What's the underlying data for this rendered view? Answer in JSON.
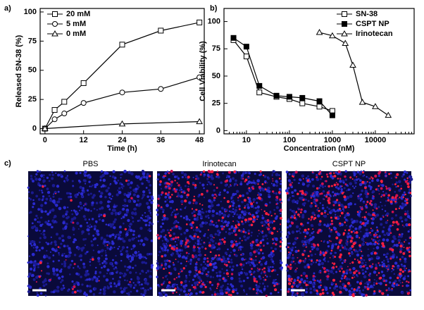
{
  "panel_labels": [
    "a)",
    "b)",
    "c)"
  ],
  "chart_data": [
    {
      "type": "line",
      "x_label": "Time (h)",
      "y_label": "Released SN-38 (%)",
      "xlim": [
        -1.5,
        49.5
      ],
      "xticks": [
        0,
        12,
        24,
        36,
        48
      ],
      "ylim": [
        -4.5,
        103
      ],
      "yticks": [
        0,
        25,
        50,
        75,
        100
      ],
      "log_x": false,
      "legend": "top-left",
      "series": [
        {
          "name": "20 mM",
          "color": "#000000",
          "marker": "square",
          "filled": false,
          "x": [
            0,
            3,
            6,
            12,
            24,
            36,
            48
          ],
          "values": [
            0,
            16,
            23,
            39,
            72,
            84,
            91
          ]
        },
        {
          "name": "5 mM",
          "color": "#000000",
          "marker": "circle",
          "filled": false,
          "x": [
            0,
            3,
            6,
            12,
            24,
            36,
            48
          ],
          "values": [
            0,
            8,
            13,
            22,
            31,
            34,
            44
          ]
        },
        {
          "name": "0 mM",
          "color": "#000000",
          "marker": "triangle",
          "filled": false,
          "x": [
            0,
            24,
            48
          ],
          "values": [
            0,
            4,
            6
          ]
        }
      ]
    },
    {
      "type": "line",
      "x_label": "Concentration (nM)",
      "y_label": "Cell Viability (%)",
      "xlim": [
        3,
        80000
      ],
      "xticks": [
        10,
        100,
        1000,
        10000
      ],
      "ylim": [
        -3,
        112
      ],
      "yticks": [
        0,
        25,
        50,
        75,
        100
      ],
      "log_x": true,
      "legend": "top-right",
      "series": [
        {
          "name": "SN-38",
          "color": "#000000",
          "marker": "square",
          "filled": false,
          "x": [
            5,
            10,
            20,
            50,
            100,
            200,
            500,
            1000
          ],
          "values": [
            83,
            68,
            35,
            31,
            29,
            25,
            22,
            18
          ]
        },
        {
          "name": "CSPT NP",
          "color": "#000000",
          "marker": "square",
          "filled": true,
          "x": [
            5,
            10,
            20,
            50,
            100,
            200,
            500,
            1000
          ],
          "values": [
            85,
            77,
            41,
            32,
            31,
            30,
            27,
            14
          ]
        },
        {
          "name": "Irinotecan",
          "color": "#000000",
          "marker": "triangle",
          "filled": false,
          "x": [
            500,
            1000,
            2000,
            3000,
            5000,
            10000,
            20000
          ],
          "values": [
            90,
            87,
            80,
            60,
            26,
            22,
            14
          ]
        }
      ]
    }
  ],
  "images": [
    {
      "label": "PBS"
    },
    {
      "label": "Irinotecan"
    },
    {
      "label": "CSPT NP"
    }
  ]
}
